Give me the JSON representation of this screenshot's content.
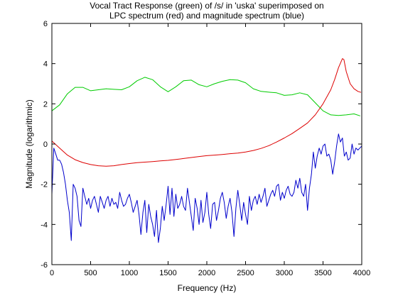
{
  "chart_data": {
    "type": "line",
    "title_lines": [
      "Vocal Tract Response (green) of /s/ in 'uska' superimposed on",
      "LPC spectrum (red) and magnitude spectrum (blue)"
    ],
    "xlabel": "Frequency (Hz)",
    "ylabel": "Magnitude (logarithmic)",
    "xlim": [
      0,
      4000
    ],
    "ylim": [
      -6,
      6
    ],
    "xticks": [
      0,
      500,
      1000,
      1500,
      2000,
      2500,
      3000,
      3500,
      4000
    ],
    "yticks": [
      -6,
      -4,
      -2,
      0,
      2,
      4,
      6
    ],
    "grid": false,
    "series": [
      {
        "color": "#00cc00",
        "x": [
          0,
          100,
          200,
          300,
          400,
          500,
          600,
          700,
          800,
          900,
          1000,
          1100,
          1200,
          1300,
          1400,
          1500,
          1600,
          1700,
          1800,
          1900,
          2000,
          2100,
          2200,
          2300,
          2400,
          2500,
          2600,
          2700,
          2800,
          2900,
          3000,
          3100,
          3200,
          3300,
          3400,
          3500,
          3600,
          3700,
          3800,
          3900,
          3980
        ],
        "y": [
          1.65,
          1.95,
          2.5,
          2.82,
          2.82,
          2.65,
          2.7,
          2.75,
          2.72,
          2.7,
          2.85,
          3.15,
          3.32,
          3.2,
          2.85,
          2.6,
          2.85,
          3.15,
          3.18,
          2.95,
          2.85,
          3.0,
          3.12,
          3.2,
          3.18,
          3.05,
          2.75,
          2.62,
          2.58,
          2.55,
          2.42,
          2.45,
          2.55,
          2.45,
          2.05,
          1.65,
          1.45,
          1.42,
          1.45,
          1.5,
          1.4
        ]
      },
      {
        "color": "#dd0000",
        "x": [
          0,
          100,
          200,
          300,
          400,
          500,
          600,
          700,
          800,
          900,
          1000,
          1100,
          1200,
          1300,
          1400,
          1500,
          1600,
          1700,
          1800,
          1900,
          2000,
          2100,
          2200,
          2300,
          2400,
          2500,
          2600,
          2700,
          2800,
          2900,
          3000,
          3100,
          3200,
          3300,
          3400,
          3500,
          3600,
          3650,
          3700,
          3750,
          3770,
          3800,
          3850,
          3900,
          3950,
          3990
        ],
        "y": [
          0.15,
          -0.2,
          -0.55,
          -0.78,
          -0.92,
          -1.02,
          -1.08,
          -1.1,
          -1.08,
          -1.02,
          -0.97,
          -0.93,
          -0.9,
          -0.87,
          -0.84,
          -0.81,
          -0.77,
          -0.72,
          -0.67,
          -0.62,
          -0.58,
          -0.55,
          -0.52,
          -0.48,
          -0.45,
          -0.4,
          -0.32,
          -0.22,
          -0.08,
          0.1,
          0.3,
          0.52,
          0.78,
          1.05,
          1.45,
          2.0,
          2.7,
          3.2,
          3.8,
          4.25,
          4.2,
          3.6,
          3.0,
          2.75,
          2.62,
          2.57
        ]
      },
      {
        "color": "#0000cc",
        "x": [
          0,
          25,
          50,
          75,
          100,
          125,
          150,
          175,
          200,
          225,
          250,
          275,
          300,
          325,
          350,
          375,
          400,
          425,
          450,
          475,
          500,
          525,
          550,
          575,
          600,
          625,
          650,
          675,
          700,
          725,
          750,
          775,
          800,
          825,
          850,
          875,
          900,
          925,
          950,
          975,
          1000,
          1025,
          1050,
          1075,
          1100,
          1125,
          1150,
          1175,
          1200,
          1225,
          1250,
          1275,
          1300,
          1325,
          1350,
          1375,
          1400,
          1425,
          1450,
          1475,
          1500,
          1525,
          1550,
          1575,
          1600,
          1625,
          1650,
          1675,
          1700,
          1725,
          1750,
          1775,
          1800,
          1825,
          1850,
          1875,
          1900,
          1925,
          1950,
          1975,
          2000,
          2025,
          2050,
          2075,
          2100,
          2125,
          2150,
          2175,
          2200,
          2225,
          2250,
          2275,
          2300,
          2325,
          2350,
          2375,
          2400,
          2425,
          2450,
          2475,
          2500,
          2525,
          2550,
          2575,
          2600,
          2625,
          2650,
          2675,
          2700,
          2725,
          2750,
          2775,
          2800,
          2825,
          2850,
          2875,
          2900,
          2925,
          2950,
          2975,
          3000,
          3025,
          3050,
          3075,
          3100,
          3125,
          3150,
          3175,
          3200,
          3225,
          3250,
          3275,
          3300,
          3325,
          3350,
          3375,
          3400,
          3425,
          3450,
          3475,
          3500,
          3525,
          3550,
          3575,
          3600,
          3625,
          3650,
          3675,
          3700,
          3725,
          3750,
          3775,
          3800,
          3825,
          3850,
          3875,
          3900,
          3925,
          3950,
          3975,
          4000
        ],
        "y": [
          -2.5,
          -0.2,
          -0.5,
          -0.8,
          -0.8,
          -1.0,
          -1.4,
          -2.0,
          -2.8,
          -3.4,
          -4.8,
          -2.0,
          -2.2,
          -2.6,
          -3.8,
          -4.1,
          -2.2,
          -2.6,
          -3.0,
          -2.7,
          -3.2,
          -2.8,
          -2.6,
          -3.0,
          -3.4,
          -2.6,
          -2.9,
          -3.2,
          -2.8,
          -2.6,
          -3.1,
          -2.7,
          -3.0,
          -2.9,
          -3.2,
          -2.4,
          -2.8,
          -3.1,
          -3.0,
          -2.7,
          -2.5,
          -2.9,
          -3.4,
          -3.1,
          -2.8,
          -3.5,
          -4.5,
          -3.4,
          -2.8,
          -4.4,
          -3.0,
          -3.6,
          -4.0,
          -4.6,
          -3.3,
          -4.9,
          -4.2,
          -3.1,
          -3.8,
          -3.0,
          -2.1,
          -3.5,
          -2.2,
          -3.6,
          -2.5,
          -3.2,
          -3.0,
          -2.6,
          -3.1,
          -3.3,
          -2.2,
          -2.9,
          -3.6,
          -4.3,
          -2.7,
          -3.2,
          -4.0,
          -2.8,
          -3.9,
          -3.4,
          -2.4,
          -3.5,
          -4.2,
          -3.0,
          -2.9,
          -3.8,
          -3.3,
          -2.7,
          -2.4,
          -2.9,
          -3.7,
          -3.1,
          -2.7,
          -3.4,
          -4.6,
          -3.2,
          -2.3,
          -3.0,
          -3.8,
          -2.9,
          -3.5,
          -4.0,
          -2.6,
          -3.3,
          -2.8,
          -2.6,
          -3.0,
          -2.5,
          -2.9,
          -2.6,
          -2.2,
          -3.1,
          -2.8,
          -2.5,
          -2.3,
          -2.6,
          -2.1,
          -2.0,
          -2.8,
          -2.4,
          -2.7,
          -2.3,
          -2.1,
          -2.5,
          -2.6,
          -2.4,
          -1.8,
          -2.2,
          -1.7,
          -2.4,
          -2.6,
          -2.0,
          -3.3,
          -2.2,
          -1.5,
          -0.4,
          -1.2,
          -0.6,
          -0.2,
          -0.5,
          -0.1,
          0.0,
          -0.6,
          -0.5,
          -0.8,
          -1.5,
          -0.9,
          -0.1,
          0.5,
          0.1,
          0.3,
          -0.6,
          -0.4,
          -0.8,
          -0.7,
          0.0,
          -0.5,
          -0.2,
          -0.3,
          -0.2,
          -0.1
        ]
      }
    ]
  }
}
